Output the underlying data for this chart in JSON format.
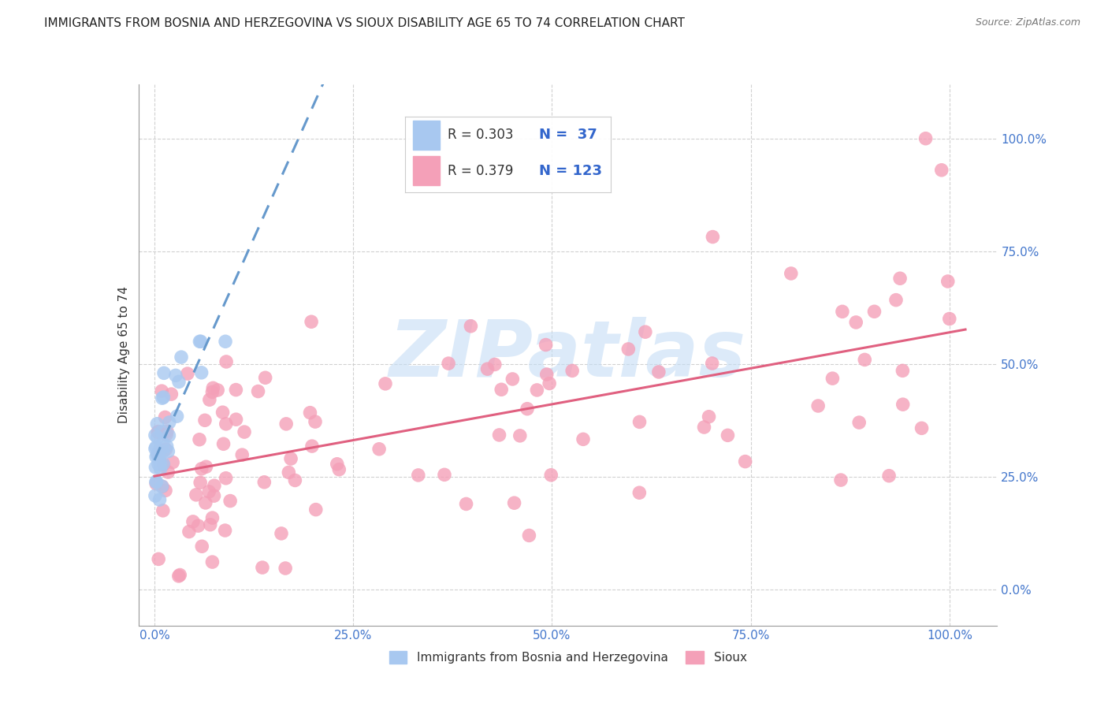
{
  "title": "IMMIGRANTS FROM BOSNIA AND HERZEGOVINA VS SIOUX DISABILITY AGE 65 TO 74 CORRELATION CHART",
  "source": "Source: ZipAtlas.com",
  "ylabel": "Disability Age 65 to 74",
  "x_tick_labels": [
    "0.0%",
    "25.0%",
    "50.0%",
    "75.0%",
    "100.0%"
  ],
  "y_tick_labels": [
    "0.0%",
    "25.0%",
    "50.0%",
    "75.0%",
    "100.0%"
  ],
  "x_tick_positions": [
    0.0,
    0.25,
    0.5,
    0.75,
    1.0
  ],
  "y_tick_positions": [
    0.0,
    0.25,
    0.5,
    0.75,
    1.0
  ],
  "xlim": [
    -0.02,
    1.06
  ],
  "ylim": [
    -0.08,
    1.12
  ],
  "blue_color": "#a8c8f0",
  "pink_color": "#f4a0b8",
  "blue_line_color": "#6699cc",
  "pink_line_color": "#e06080",
  "R_blue": 0.303,
  "N_blue": 37,
  "R_pink": 0.379,
  "N_pink": 123,
  "background_color": "#ffffff",
  "watermark_text": "ZIPatlas",
  "watermark_color": "#c5ddf5",
  "grid_color": "#cccccc",
  "tick_color": "#4477cc",
  "title_fontsize": 11,
  "axis_label_fontsize": 11,
  "tick_fontsize": 11,
  "legend_R_color": "#333333",
  "legend_N_color": "#3366cc"
}
